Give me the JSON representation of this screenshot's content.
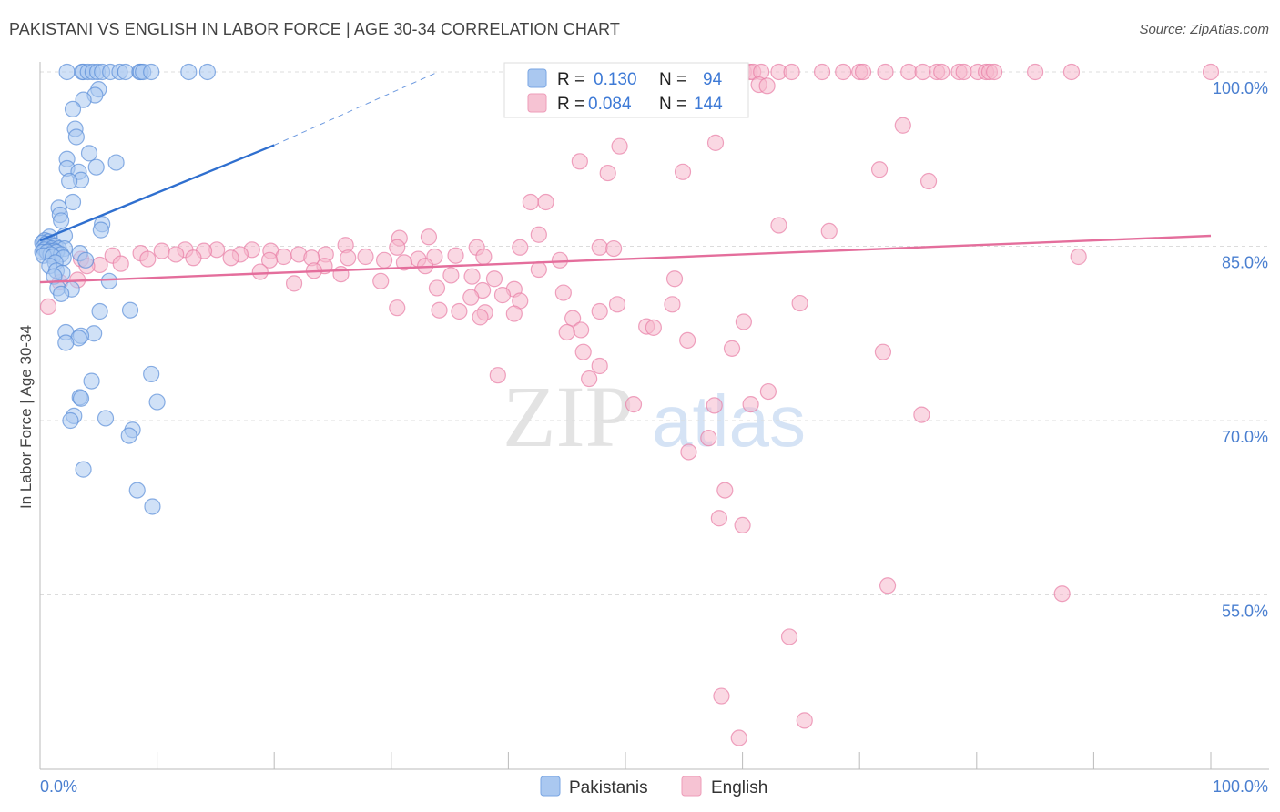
{
  "header": {
    "title": "PAKISTANI VS ENGLISH IN LABOR FORCE | AGE 30-34 CORRELATION CHART",
    "source": "Source: ZipAtlas.com"
  },
  "watermark": {
    "zip": "ZIP",
    "atlas": "atlas"
  },
  "legend": {
    "r_label": "R =",
    "n_label": "N =",
    "rows": [
      {
        "r": "0.130",
        "n": "94",
        "color": "#aac8f0"
      },
      {
        "r": "0.084",
        "n": "144",
        "color": "#f6b8cc"
      }
    ]
  },
  "bottom_legend": [
    "Pakistanis",
    "English"
  ],
  "chart_data": {
    "type": "scatter",
    "title": "PAKISTANI VS ENGLISH IN LABOR FORCE | AGE 30-34 CORRELATION CHART",
    "xlabel": "",
    "ylabel": "In Labor Force | Age 30-34",
    "xlim": [
      0,
      100
    ],
    "ylim": [
      40,
      100
    ],
    "x_tick_labels": [
      "0.0%",
      "100.0%"
    ],
    "y_ticks": [
      55,
      70,
      85,
      100
    ],
    "y_tick_labels": [
      "55.0%",
      "70.0%",
      "85.0%",
      "100.0%"
    ],
    "grid": true,
    "legend_position": "top-center",
    "series": [
      {
        "name": "Pakistanis",
        "color": "#5b8fd9",
        "fill": "#aac8f0",
        "r": 0.13,
        "n": 94,
        "trend": {
          "x": [
            0,
            20
          ],
          "y": [
            85.5,
            93.7
          ],
          "dashed_to": [
            34,
            100
          ]
        },
        "points": [
          [
            2.3,
            100
          ],
          [
            3.6,
            100
          ],
          [
            3.7,
            100
          ],
          [
            4.1,
            100
          ],
          [
            4.5,
            100
          ],
          [
            4.9,
            100
          ],
          [
            5.3,
            100
          ],
          [
            6.0,
            100
          ],
          [
            6.8,
            100
          ],
          [
            7.3,
            100
          ],
          [
            8.5,
            100
          ],
          [
            8.6,
            100
          ],
          [
            8.8,
            100
          ],
          [
            9.5,
            100
          ],
          [
            12.7,
            100
          ],
          [
            14.3,
            100
          ],
          [
            5.0,
            98.5
          ],
          [
            4.7,
            98.0
          ],
          [
            3.7,
            97.6
          ],
          [
            2.8,
            96.8
          ],
          [
            3.0,
            95.1
          ],
          [
            3.1,
            94.4
          ],
          [
            4.2,
            93.0
          ],
          [
            2.3,
            92.5
          ],
          [
            6.5,
            92.2
          ],
          [
            4.8,
            91.8
          ],
          [
            2.3,
            91.7
          ],
          [
            3.3,
            91.4
          ],
          [
            3.5,
            90.7
          ],
          [
            2.5,
            90.6
          ],
          [
            2.8,
            88.8
          ],
          [
            1.6,
            88.3
          ],
          [
            1.7,
            87.7
          ],
          [
            1.8,
            87.2
          ],
          [
            5.3,
            86.9
          ],
          [
            5.2,
            86.4
          ],
          [
            2.1,
            85.9
          ],
          [
            0.8,
            85.8
          ],
          [
            0.4,
            85.5
          ],
          [
            0.7,
            85.4
          ],
          [
            0.2,
            85.3
          ],
          [
            0.5,
            85.2
          ],
          [
            0.9,
            85.1
          ],
          [
            1.3,
            85.0
          ],
          [
            0.3,
            84.9
          ],
          [
            0.6,
            84.9
          ],
          [
            1.0,
            84.8
          ],
          [
            1.6,
            84.8
          ],
          [
            2.1,
            84.8
          ],
          [
            0.4,
            84.7
          ],
          [
            0.8,
            84.6
          ],
          [
            1.2,
            84.6
          ],
          [
            0.2,
            84.5
          ],
          [
            0.6,
            84.5
          ],
          [
            1.4,
            84.5
          ],
          [
            3.4,
            84.4
          ],
          [
            0.9,
            84.3
          ],
          [
            1.8,
            84.3
          ],
          [
            0.3,
            84.2
          ],
          [
            1.1,
            84.1
          ],
          [
            2.0,
            84.0
          ],
          [
            3.9,
            83.8
          ],
          [
            1.3,
            83.6
          ],
          [
            0.8,
            83.3
          ],
          [
            1.4,
            82.9
          ],
          [
            1.9,
            82.7
          ],
          [
            1.2,
            82.4
          ],
          [
            5.9,
            82.0
          ],
          [
            1.5,
            81.4
          ],
          [
            2.7,
            81.3
          ],
          [
            1.8,
            80.9
          ],
          [
            7.7,
            79.5
          ],
          [
            5.1,
            79.4
          ],
          [
            2.2,
            77.6
          ],
          [
            4.6,
            77.5
          ],
          [
            3.5,
            77.3
          ],
          [
            3.3,
            77.1
          ],
          [
            2.2,
            76.7
          ],
          [
            9.5,
            74.0
          ],
          [
            4.4,
            73.4
          ],
          [
            3.4,
            72.0
          ],
          [
            3.5,
            71.9
          ],
          [
            10.0,
            71.6
          ],
          [
            2.9,
            70.4
          ],
          [
            2.6,
            70.0
          ],
          [
            5.6,
            70.2
          ],
          [
            7.9,
            69.2
          ],
          [
            7.6,
            68.7
          ],
          [
            3.7,
            65.8
          ],
          [
            8.3,
            64.0
          ],
          [
            9.6,
            62.6
          ]
        ]
      },
      {
        "name": "English",
        "color": "#e87da5",
        "fill": "#f6b8cc",
        "r": 0.084,
        "n": 144,
        "trend": {
          "x": [
            0,
            100
          ],
          "y": [
            81.9,
            85.9
          ]
        },
        "points": [
          [
            51.9,
            100
          ],
          [
            52.2,
            100
          ],
          [
            59.9,
            100
          ],
          [
            60.1,
            100
          ],
          [
            60.6,
            100
          ],
          [
            60.9,
            100
          ],
          [
            61.6,
            100
          ],
          [
            63.1,
            100
          ],
          [
            64.2,
            100
          ],
          [
            66.8,
            100
          ],
          [
            68.6,
            100
          ],
          [
            70.0,
            100
          ],
          [
            70.3,
            100
          ],
          [
            72.2,
            100
          ],
          [
            74.2,
            100
          ],
          [
            75.4,
            100
          ],
          [
            76.6,
            100
          ],
          [
            77.0,
            100
          ],
          [
            78.5,
            100
          ],
          [
            78.9,
            100
          ],
          [
            80.1,
            100
          ],
          [
            80.8,
            100
          ],
          [
            81.1,
            100
          ],
          [
            81.5,
            100
          ],
          [
            85.0,
            100
          ],
          [
            88.1,
            100
          ],
          [
            100.0,
            100
          ],
          [
            61.4,
            98.9
          ],
          [
            62.1,
            98.8
          ],
          [
            55.6,
            97.9
          ],
          [
            73.7,
            95.4
          ],
          [
            49.5,
            93.6
          ],
          [
            57.7,
            93.9
          ],
          [
            46.1,
            92.3
          ],
          [
            48.5,
            91.3
          ],
          [
            54.9,
            91.4
          ],
          [
            71.7,
            91.6
          ],
          [
            75.9,
            90.6
          ],
          [
            41.9,
            88.8
          ],
          [
            43.2,
            88.8
          ],
          [
            63.1,
            86.8
          ],
          [
            67.4,
            86.3
          ],
          [
            42.6,
            86.0
          ],
          [
            33.2,
            85.8
          ],
          [
            30.7,
            85.7
          ],
          [
            26.1,
            85.1
          ],
          [
            30.5,
            84.9
          ],
          [
            37.3,
            84.9
          ],
          [
            41.0,
            84.9
          ],
          [
            47.8,
            84.9
          ],
          [
            49.0,
            84.8
          ],
          [
            12.4,
            84.7
          ],
          [
            15.1,
            84.7
          ],
          [
            18.1,
            84.7
          ],
          [
            10.4,
            84.6
          ],
          [
            14.0,
            84.6
          ],
          [
            19.7,
            84.6
          ],
          [
            8.6,
            84.4
          ],
          [
            11.6,
            84.3
          ],
          [
            17.1,
            84.3
          ],
          [
            22.1,
            84.3
          ],
          [
            24.4,
            84.3
          ],
          [
            6.2,
            84.2
          ],
          [
            20.8,
            84.1
          ],
          [
            27.8,
            84.1
          ],
          [
            33.7,
            84.1
          ],
          [
            37.9,
            84.1
          ],
          [
            13.1,
            84.0
          ],
          [
            16.3,
            84.0
          ],
          [
            23.2,
            84.0
          ],
          [
            26.3,
            84.0
          ],
          [
            3.5,
            83.9
          ],
          [
            9.2,
            83.9
          ],
          [
            19.6,
            83.8
          ],
          [
            29.4,
            83.8
          ],
          [
            32.3,
            83.9
          ],
          [
            44.4,
            83.8
          ],
          [
            88.7,
            84.1
          ],
          [
            35.5,
            84.2
          ],
          [
            6.9,
            83.5
          ],
          [
            5.1,
            83.4
          ],
          [
            4.0,
            83.3
          ],
          [
            24.3,
            83.3
          ],
          [
            31.1,
            83.6
          ],
          [
            32.9,
            83.3
          ],
          [
            42.6,
            83.0
          ],
          [
            23.4,
            82.9
          ],
          [
            18.8,
            82.8
          ],
          [
            25.7,
            82.6
          ],
          [
            35.1,
            82.5
          ],
          [
            36.9,
            82.4
          ],
          [
            38.8,
            82.2
          ],
          [
            3.2,
            82.1
          ],
          [
            29.1,
            82.0
          ],
          [
            54.2,
            82.2
          ],
          [
            1.7,
            81.9
          ],
          [
            21.7,
            81.8
          ],
          [
            33.9,
            81.4
          ],
          [
            40.5,
            81.3
          ],
          [
            44.7,
            81.0
          ],
          [
            37.8,
            81.2
          ],
          [
            39.5,
            80.8
          ],
          [
            36.8,
            80.6
          ],
          [
            41.0,
            80.3
          ],
          [
            49.3,
            80.0
          ],
          [
            54.0,
            80.0
          ],
          [
            64.9,
            80.1
          ],
          [
            0.7,
            79.8
          ],
          [
            30.5,
            79.7
          ],
          [
            34.1,
            79.5
          ],
          [
            35.8,
            79.4
          ],
          [
            38.0,
            79.3
          ],
          [
            47.8,
            79.4
          ],
          [
            40.5,
            79.2
          ],
          [
            37.6,
            78.9
          ],
          [
            45.5,
            78.8
          ],
          [
            60.1,
            78.5
          ],
          [
            51.8,
            78.1
          ],
          [
            52.4,
            78.0
          ],
          [
            46.2,
            77.8
          ],
          [
            45.0,
            77.6
          ],
          [
            55.3,
            76.9
          ],
          [
            59.1,
            76.2
          ],
          [
            46.4,
            75.9
          ],
          [
            72.0,
            75.9
          ],
          [
            47.8,
            74.7
          ],
          [
            39.1,
            73.9
          ],
          [
            46.9,
            73.6
          ],
          [
            62.2,
            72.5
          ],
          [
            60.7,
            71.4
          ],
          [
            50.7,
            71.4
          ],
          [
            57.6,
            71.3
          ],
          [
            75.3,
            70.5
          ],
          [
            57.1,
            68.5
          ],
          [
            55.4,
            67.3
          ],
          [
            58.5,
            64.0
          ],
          [
            58.0,
            61.6
          ],
          [
            60.0,
            61.0
          ],
          [
            72.4,
            55.8
          ],
          [
            87.3,
            55.1
          ],
          [
            64.0,
            51.4
          ],
          [
            58.2,
            46.3
          ],
          [
            65.3,
            44.2
          ],
          [
            59.7,
            42.7
          ]
        ]
      }
    ]
  }
}
